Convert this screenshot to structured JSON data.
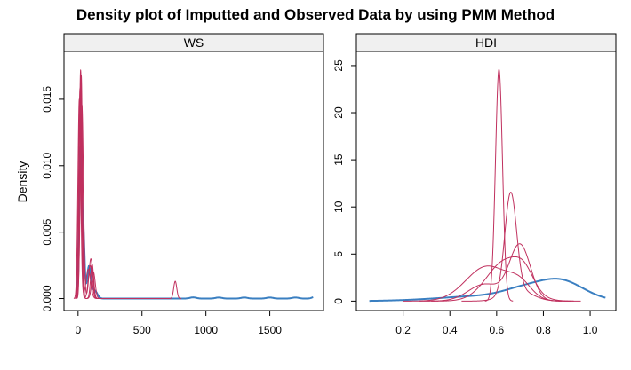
{
  "chart_data": {
    "title": "Density plot of Imputted and Observed Data by using PMM Method",
    "ylabel": "Density",
    "type": "line",
    "colors": {
      "observed": "#3a7fc1",
      "imputed": "#c0305e",
      "strip": "#f0f0f0"
    },
    "legend": "none",
    "grid": false,
    "panels": [
      {
        "strip": "WS",
        "xlim": [
          -110,
          1920
        ],
        "ylim": [
          -0.0009,
          0.0186
        ],
        "x_ticks": [
          0,
          500,
          1000,
          1500
        ],
        "x_tick_labels": [
          "0",
          "500",
          "1000",
          "1500"
        ],
        "y_ticks": [
          0,
          0.005,
          0.01,
          0.015
        ],
        "y_tick_labels": [
          "0.000",
          "0.005",
          "0.010",
          "0.015"
        ],
        "series": [
          {
            "role": "observed",
            "components": [
              {
                "mu": 20,
                "sd": 12,
                "amp": 0.0115
              },
              {
                "mu": 45,
                "sd": 8,
                "amp": 0.0035
              },
              {
                "mu": 85,
                "sd": 15,
                "amp": 0.0024
              },
              {
                "mu": 130,
                "sd": 20,
                "amp": 0.0006
              },
              {
                "mu": 900,
                "sd": 25,
                "amp": 9e-05
              },
              {
                "mu": 1100,
                "sd": 25,
                "amp": 8e-05
              },
              {
                "mu": 1300,
                "sd": 25,
                "amp": 8e-05
              },
              {
                "mu": 1500,
                "sd": 25,
                "amp": 8e-05
              },
              {
                "mu": 1700,
                "sd": 25,
                "amp": 8e-05
              },
              {
                "mu": 1850,
                "sd": 20,
                "amp": 0.00012
              }
            ]
          },
          {
            "role": "imputed",
            "components": [
              {
                "mu": 20,
                "sd": 10,
                "amp": 0.0172
              },
              {
                "mu": 110,
                "sd": 12,
                "amp": 0.0026
              }
            ]
          },
          {
            "role": "imputed",
            "components": [
              {
                "mu": 15,
                "sd": 10,
                "amp": 0.0158
              },
              {
                "mu": 95,
                "sd": 15,
                "amp": 0.0025
              }
            ]
          },
          {
            "role": "imputed",
            "components": [
              {
                "mu": 30,
                "sd": 12,
                "amp": 0.0146
              },
              {
                "mu": 100,
                "sd": 15,
                "amp": 0.003
              },
              {
                "mu": 760,
                "sd": 12,
                "amp": 0.0013
              }
            ]
          },
          {
            "role": "imputed",
            "components": [
              {
                "mu": 10,
                "sd": 11,
                "amp": 0.015
              },
              {
                "mu": 80,
                "sd": 18,
                "amp": 0.0022
              }
            ]
          },
          {
            "role": "imputed",
            "components": [
              {
                "mu": 25,
                "sd": 9,
                "amp": 0.0168
              },
              {
                "mu": 120,
                "sd": 14,
                "amp": 0.002
              }
            ]
          }
        ]
      },
      {
        "strip": "HDI",
        "xlim": [
          0.0,
          1.11
        ],
        "ylim": [
          -1.0,
          26.5
        ],
        "x_ticks": [
          0.2,
          0.4,
          0.6,
          0.8,
          1.0
        ],
        "x_tick_labels": [
          "0.2",
          "0.4",
          "0.6",
          "0.8",
          "1.0"
        ],
        "y_ticks": [
          0,
          5,
          10,
          15,
          20,
          25
        ],
        "y_tick_labels": [
          "0",
          "5",
          "10",
          "15",
          "20",
          "25"
        ],
        "series": [
          {
            "role": "observed",
            "components": [
              {
                "mu": 0.6,
                "sd": 0.22,
                "amp": 0.6
              },
              {
                "mu": 0.87,
                "sd": 0.1,
                "amp": 2.0
              },
              {
                "mu": 0.7,
                "sd": 0.08,
                "amp": 0.6
              }
            ]
          },
          {
            "role": "imputed",
            "components": [
              {
                "mu": 0.61,
                "sd": 0.015,
                "amp": 24.6
              }
            ]
          },
          {
            "role": "imputed",
            "components": [
              {
                "mu": 0.66,
                "sd": 0.025,
                "amp": 10.5
              },
              {
                "mu": 0.69,
                "sd": 0.06,
                "amp": 1.2
              }
            ]
          },
          {
            "role": "imputed",
            "components": [
              {
                "mu": 0.56,
                "sd": 0.09,
                "amp": 3.7
              },
              {
                "mu": 0.7,
                "sd": 0.05,
                "amp": 1.5
              }
            ]
          },
          {
            "role": "imputed",
            "components": [
              {
                "mu": 0.64,
                "sd": 0.08,
                "amp": 4.3
              },
              {
                "mu": 0.72,
                "sd": 0.04,
                "amp": 1.5
              }
            ]
          },
          {
            "role": "imputed",
            "components": [
              {
                "mu": 0.7,
                "sd": 0.045,
                "amp": 5.9
              },
              {
                "mu": 0.55,
                "sd": 0.07,
                "amp": 1.8
              }
            ]
          }
        ]
      }
    ]
  }
}
